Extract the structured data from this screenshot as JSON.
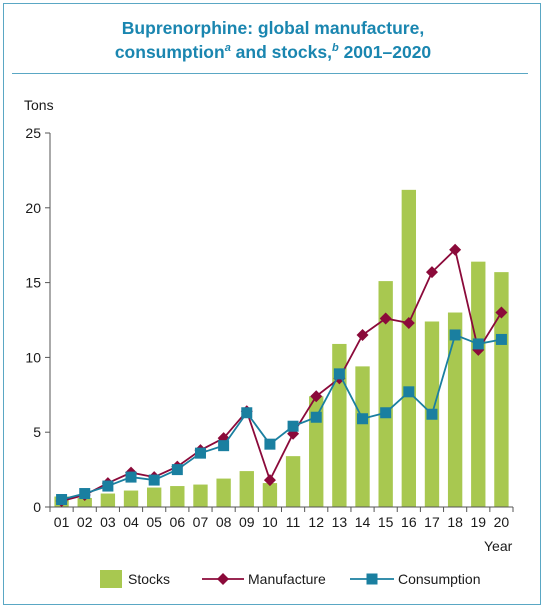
{
  "title": {
    "line1": "Buprenorphine: global manufacture,",
    "line2_pre": "consumption",
    "line2_sup_a": "a",
    "line2_mid": " and stocks,",
    "line2_sup_b": "b",
    "line2_post": " 2001–2020"
  },
  "colors": {
    "stocks": "#a8c850",
    "manufacture": "#8b0a3a",
    "consumption": "#1a7fa0",
    "title": "#1a86b0",
    "frame": "#5aa7c4"
  },
  "chart_data": {
    "type": "bar",
    "ylabel": "Tons",
    "xlabel": "Year",
    "ylim": [
      0,
      25
    ],
    "yticks": [
      0,
      5,
      10,
      15,
      20,
      25
    ],
    "categories": [
      "01",
      "02",
      "03",
      "04",
      "05",
      "06",
      "07",
      "08",
      "09",
      "10",
      "11",
      "12",
      "13",
      "14",
      "15",
      "16",
      "17",
      "18",
      "19",
      "20"
    ],
    "series": [
      {
        "name": "Stocks",
        "type": "bar",
        "values": [
          0.7,
          0.6,
          0.9,
          1.1,
          1.3,
          1.4,
          1.5,
          1.9,
          2.4,
          1.6,
          3.4,
          7.4,
          10.9,
          9.4,
          15.1,
          21.2,
          12.4,
          13.0,
          16.4,
          15.7
        ]
      },
      {
        "name": "Manufacture",
        "type": "line",
        "marker": "diamond",
        "values": [
          0.4,
          0.8,
          1.6,
          2.3,
          2.0,
          2.7,
          3.8,
          4.6,
          6.4,
          1.8,
          4.9,
          7.4,
          8.6,
          11.5,
          12.6,
          12.3,
          15.7,
          17.2,
          10.5,
          13.0
        ]
      },
      {
        "name": "Consumption",
        "type": "line",
        "marker": "square",
        "values": [
          0.5,
          0.9,
          1.4,
          2.0,
          1.8,
          2.5,
          3.6,
          4.1,
          6.3,
          4.2,
          5.4,
          6.0,
          8.9,
          5.9,
          6.3,
          7.7,
          6.2,
          11.5,
          10.9,
          11.2
        ]
      }
    ],
    "legend_position": "bottom",
    "grid": false
  }
}
